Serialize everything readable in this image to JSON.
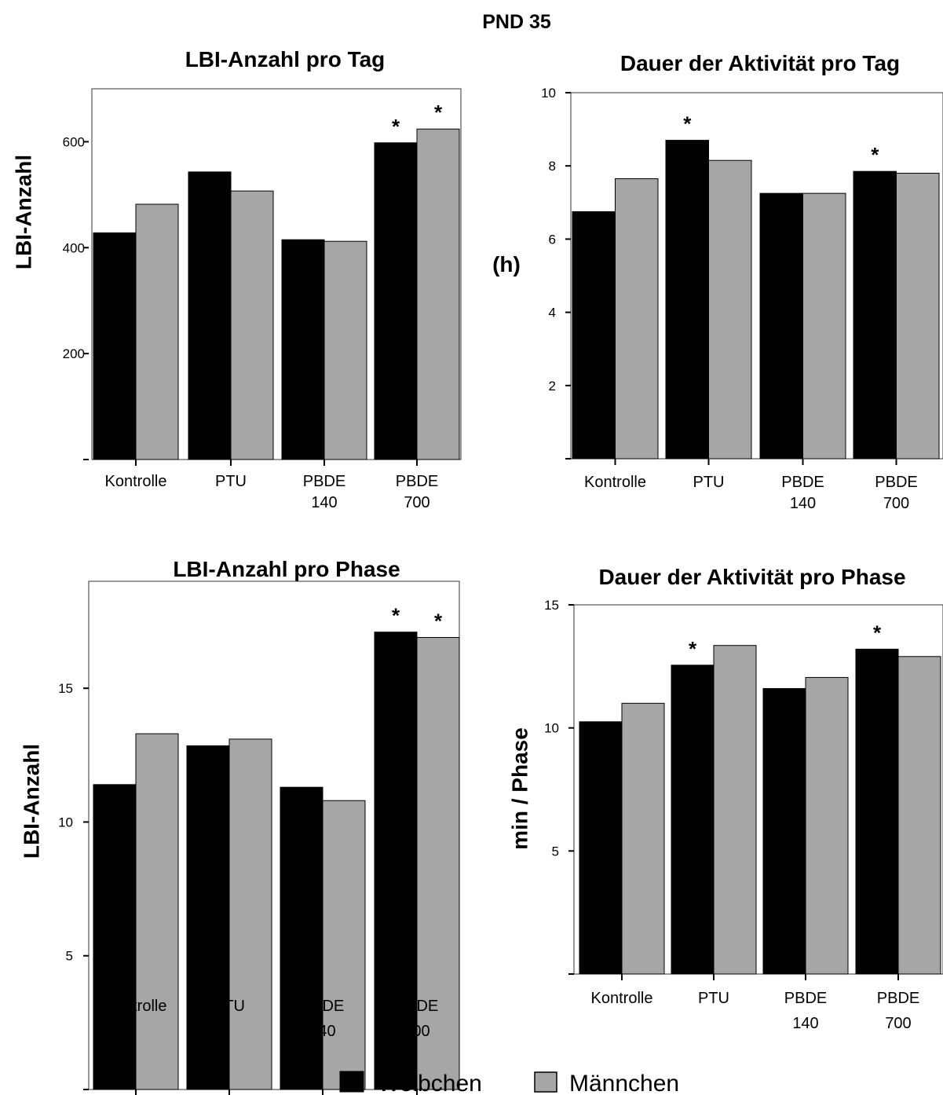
{
  "figure": {
    "title": "PND 35"
  },
  "legend": {
    "items": [
      {
        "label": "Weibchen",
        "color": "#000000"
      },
      {
        "label": "Männchen",
        "color": "#a6a6a6"
      }
    ]
  },
  "chart_data": [
    {
      "type": "bar",
      "title": "LBI-Anzahl pro Tag",
      "xlabel": "",
      "ylabel": "LBI-Anzahl",
      "ylim": [
        0,
        700
      ],
      "yticks": [
        200,
        400,
        600
      ],
      "categories": [
        [
          "Kontrolle"
        ],
        [
          "PTU"
        ],
        [
          "PBDE",
          "140"
        ],
        [
          "PBDE",
          "700"
        ]
      ],
      "series": [
        {
          "name": "Weibchen",
          "values": [
            428,
            543,
            415,
            598
          ],
          "significant": [
            false,
            false,
            false,
            true
          ]
        },
        {
          "name": "Männchen",
          "values": [
            482,
            507,
            412,
            624
          ],
          "significant": [
            false,
            false,
            false,
            true
          ]
        }
      ],
      "annotation": "*"
    },
    {
      "type": "bar",
      "title": "Dauer der Aktivität pro Tag",
      "xlabel": "",
      "ylabel": "(h)",
      "ylim": [
        0,
        10
      ],
      "yticks": [
        2,
        4,
        6,
        8,
        10
      ],
      "categories": [
        [
          "Kontrolle"
        ],
        [
          "PTU"
        ],
        [
          "PBDE",
          "140"
        ],
        [
          "PBDE",
          "700"
        ]
      ],
      "series": [
        {
          "name": "Weibchen",
          "values": [
            6.75,
            8.7,
            7.25,
            7.85
          ],
          "significant": [
            false,
            true,
            false,
            true
          ]
        },
        {
          "name": "Männchen",
          "values": [
            7.65,
            8.15,
            7.25,
            7.8
          ],
          "significant": [
            false,
            false,
            false,
            false
          ]
        }
      ],
      "annotation": "*"
    },
    {
      "type": "bar",
      "title": "LBI-Anzahl pro Phase",
      "xlabel": "",
      "ylabel": "LBI-Anzahl",
      "ylim": [
        0,
        19
      ],
      "yticks": [
        5,
        10,
        15
      ],
      "categories": [
        [
          "Kontrolle"
        ],
        [
          "PTU"
        ],
        [
          "PBDE",
          "140"
        ],
        [
          "PBDE",
          "700"
        ]
      ],
      "series": [
        {
          "name": "Weibchen",
          "values": [
            11.4,
            12.85,
            11.3,
            17.1
          ],
          "significant": [
            false,
            false,
            false,
            true
          ]
        },
        {
          "name": "Männchen",
          "values": [
            13.3,
            13.1,
            10.8,
            16.9
          ],
          "significant": [
            false,
            false,
            false,
            true
          ]
        }
      ],
      "annotation": "*"
    },
    {
      "type": "bar",
      "title": "Dauer der Aktivität pro Phase",
      "xlabel": "",
      "ylabel": "min / Phase",
      "ylim": [
        0,
        15
      ],
      "yticks": [
        5,
        10,
        15
      ],
      "categories": [
        [
          "Kontrolle"
        ],
        [
          "PTU"
        ],
        [
          "PBDE",
          "140"
        ],
        [
          "PBDE",
          "700"
        ]
      ],
      "series": [
        {
          "name": "Weibchen",
          "values": [
            10.25,
            12.55,
            11.6,
            13.2
          ],
          "significant": [
            false,
            true,
            false,
            true
          ]
        },
        {
          "name": "Männchen",
          "values": [
            11.0,
            13.35,
            12.05,
            12.9
          ],
          "significant": [
            false,
            false,
            false,
            false
          ]
        }
      ],
      "annotation": "*"
    }
  ]
}
